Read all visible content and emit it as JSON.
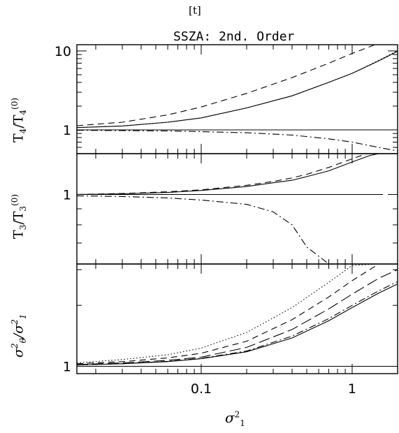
{
  "figure": {
    "corner_label": "[t]",
    "title": "SSZA: 2nd. Order",
    "x_label_parts": {
      "base": "σ",
      "sup": "2",
      "sub": "1"
    },
    "panel_labels": [
      {
        "num": "T",
        "num_sub": "4",
        "den": "T",
        "den_sub": "4",
        "den_sup": "(0)"
      },
      {
        "num": "T",
        "num_sub": "3",
        "den": "T",
        "den_sub": "3",
        "den_sup": "(0)"
      },
      {
        "num": "σ",
        "num_sup": "2",
        "num_sub": "θ",
        "den": "σ",
        "den_sup": "2",
        "den_sub": "1"
      }
    ]
  },
  "chart_data": [
    {
      "type": "line",
      "panel": "T4 / T4(0)",
      "xscale": "log",
      "yscale": "log",
      "xlim": [
        0.015,
        2.0
      ],
      "ylim": [
        0.5,
        12
      ],
      "yticks": [
        1,
        10
      ],
      "ytick_labels": [
        "1",
        "10"
      ],
      "x": [
        0.015,
        0.03,
        0.06,
        0.1,
        0.2,
        0.4,
        0.7,
        1.0,
        1.5,
        2.0
      ],
      "series": [
        {
          "style": "solid",
          "values": [
            1.0,
            1.0,
            1.0,
            1.0,
            1.0,
            1.0,
            1.0,
            1.0,
            1.0,
            1.0
          ]
        },
        {
          "style": "solid",
          "values": [
            1.07,
            1.12,
            1.25,
            1.42,
            1.9,
            2.7,
            4.0,
            5.2,
            7.5,
            9.9
          ]
        },
        {
          "style": "dotted",
          "values": [
            1.07,
            1.12,
            1.25,
            1.42,
            1.9,
            2.7,
            4.0,
            5.2,
            7.6,
            10.1
          ]
        },
        {
          "style": "dashed",
          "values": [
            1.13,
            1.25,
            1.55,
            1.95,
            2.9,
            4.6,
            7.0,
            9.3,
            12.5,
            12.5
          ]
        },
        {
          "style": "dashdot",
          "values": [
            0.99,
            0.98,
            0.97,
            0.95,
            0.92,
            0.86,
            0.77,
            0.7,
            0.6,
            0.54
          ]
        }
      ]
    },
    {
      "type": "line",
      "panel": "T3 / T3(0)",
      "xscale": "log",
      "yscale": "log",
      "xlim": [
        0.015,
        2.0
      ],
      "ylim": [
        0.6,
        1.35
      ],
      "yticks": [
        1
      ],
      "ytick_labels": [
        "1"
      ],
      "x": [
        0.015,
        0.03,
        0.06,
        0.1,
        0.2,
        0.3,
        0.4,
        0.5,
        0.7,
        1.0,
        1.3,
        1.6
      ],
      "series": [
        {
          "style": "solid",
          "values": [
            1.0,
            1.0,
            1.0,
            1.0,
            1.0,
            1.0,
            1.0,
            1.0,
            1.0,
            1.0,
            1.0,
            1.0
          ]
        },
        {
          "style": "solid",
          "values": [
            1.0,
            1.005,
            1.015,
            1.03,
            1.06,
            1.09,
            1.11,
            1.14,
            1.19,
            1.27,
            1.33,
            1.36
          ]
        },
        {
          "style": "dashed",
          "values": [
            1.0,
            1.007,
            1.02,
            1.035,
            1.07,
            1.1,
            1.13,
            1.16,
            1.22,
            1.3,
            1.36,
            1.36
          ]
        },
        {
          "style": "dashdot",
          "values": [
            0.99,
            0.985,
            0.975,
            0.96,
            0.93,
            0.88,
            0.8,
            0.68,
            0.6,
            0.6,
            0.6,
            0.6
          ]
        }
      ]
    },
    {
      "type": "line",
      "panel": "sigma_theta^2 / sigma_1^2",
      "xscale": "log",
      "yscale": "log",
      "xlim": [
        0.015,
        2.0
      ],
      "ylim": [
        0.92,
        3.2
      ],
      "yticks": [
        1
      ],
      "ytick_labels": [
        "1"
      ],
      "xticks": [
        0.1,
        1
      ],
      "xtick_labels": [
        "0.1",
        "1"
      ],
      "x": [
        0.015,
        0.03,
        0.06,
        0.1,
        0.2,
        0.4,
        0.7,
        1.0,
        1.5,
        2.0
      ],
      "series": [
        {
          "style": "solid",
          "values": [
            1.0,
            1.0,
            1.0,
            1.0,
            1.0,
            1.0,
            1.0,
            1.0,
            1.0,
            1.0
          ]
        },
        {
          "style": "solid",
          "values": [
            1.015,
            1.03,
            1.055,
            1.09,
            1.18,
            1.38,
            1.68,
            1.95,
            2.3,
            2.55
          ]
        },
        {
          "style": "dashdot",
          "values": [
            1.015,
            1.03,
            1.058,
            1.095,
            1.19,
            1.41,
            1.72,
            2.0,
            2.36,
            2.62
          ]
        },
        {
          "style": "longdash",
          "values": [
            1.02,
            1.04,
            1.07,
            1.11,
            1.24,
            1.52,
            1.92,
            2.27,
            2.72,
            3.0
          ]
        },
        {
          "style": "dashed",
          "values": [
            1.03,
            1.055,
            1.1,
            1.16,
            1.33,
            1.7,
            2.2,
            2.65,
            3.2,
            3.2
          ]
        },
        {
          "style": "dotted",
          "values": [
            1.04,
            1.08,
            1.14,
            1.23,
            1.47,
            1.95,
            2.6,
            3.15,
            3.2,
            3.2
          ]
        }
      ]
    }
  ]
}
